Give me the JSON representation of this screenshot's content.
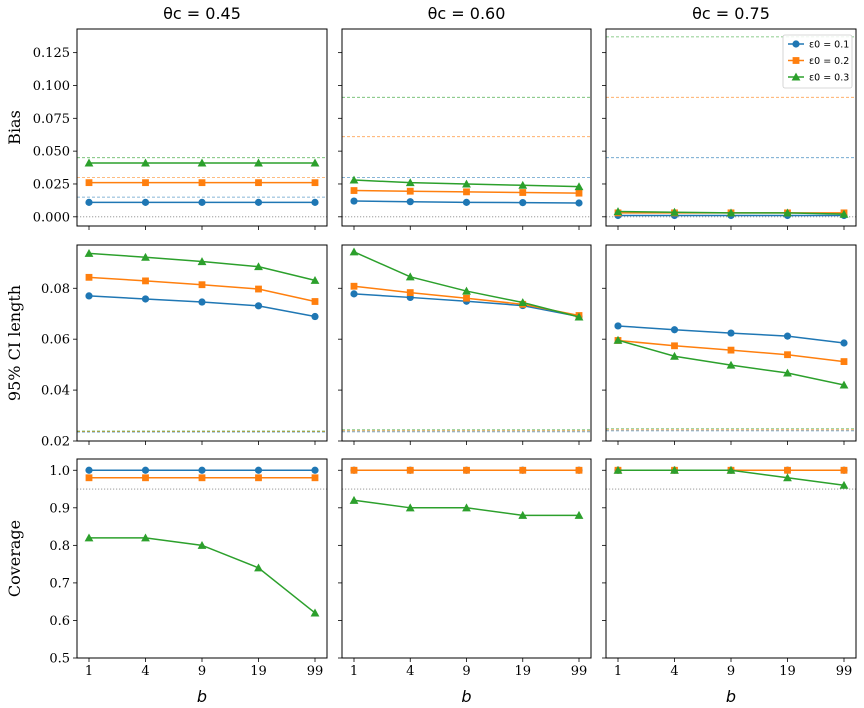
{
  "figure": {
    "col_titles": [
      "θc = 0.45",
      "θc = 0.60",
      "θc = 0.75"
    ],
    "xlabel": "b",
    "colors": {
      "eps0_0.1": "#1f77b4",
      "eps0_0.2": "#ff7f0e",
      "eps0_0.3": "#2ca02c",
      "reference": "#7f7f7f"
    }
  },
  "legend": {
    "placement": "top-right of top-right panel",
    "entries": [
      {
        "label": "ε0 = 0.1",
        "marker": "circle",
        "color": "#1f77b4"
      },
      {
        "label": "ε0 = 0.2",
        "marker": "square",
        "color": "#ff7f0e"
      },
      {
        "label": "ε0 = 0.3",
        "marker": "triangle",
        "color": "#2ca02c"
      }
    ]
  },
  "chart_data": [
    {
      "type": "line",
      "row": "bias",
      "column": "θc = 0.45",
      "categories": [
        "1",
        "4",
        "9",
        "19",
        "99"
      ],
      "ylabel": "Bias",
      "ylim": [
        -0.007,
        0.143
      ],
      "yticks": [
        "0.000",
        "0.025",
        "0.050",
        "0.075",
        "0.100",
        "0.125"
      ],
      "series": [
        {
          "name": "ε0 = 0.1",
          "values": [
            0.011,
            0.011,
            0.011,
            0.011,
            0.011
          ]
        },
        {
          "name": "ε0 = 0.2",
          "values": [
            0.026,
            0.026,
            0.026,
            0.026,
            0.026
          ]
        },
        {
          "name": "ε0 = 0.3",
          "values": [
            0.041,
            0.041,
            0.041,
            0.041,
            0.041
          ]
        }
      ],
      "reference_lines": [
        {
          "color": "#1f77b4",
          "y": 0.015
        },
        {
          "color": "#ff7f0e",
          "y": 0.03
        },
        {
          "color": "#2ca02c",
          "y": 0.045
        },
        {
          "color": "#7f7f7f",
          "y": 0.0,
          "style": "dotted"
        }
      ]
    },
    {
      "type": "line",
      "row": "bias",
      "column": "θc = 0.60",
      "categories": [
        "1",
        "4",
        "9",
        "19",
        "99"
      ],
      "ylim": [
        -0.007,
        0.143
      ],
      "series": [
        {
          "name": "ε0 = 0.1",
          "values": [
            0.012,
            0.0115,
            0.011,
            0.0108,
            0.0105
          ]
        },
        {
          "name": "ε0 = 0.2",
          "values": [
            0.02,
            0.0195,
            0.019,
            0.0185,
            0.018
          ]
        },
        {
          "name": "ε0 = 0.3",
          "values": [
            0.028,
            0.026,
            0.025,
            0.024,
            0.023
          ]
        }
      ],
      "reference_lines": [
        {
          "color": "#1f77b4",
          "y": 0.03
        },
        {
          "color": "#ff7f0e",
          "y": 0.061
        },
        {
          "color": "#2ca02c",
          "y": 0.091
        },
        {
          "color": "#7f7f7f",
          "y": 0.0,
          "style": "dotted"
        }
      ]
    },
    {
      "type": "line",
      "row": "bias",
      "column": "θc = 0.75",
      "categories": [
        "1",
        "4",
        "9",
        "19",
        "99"
      ],
      "ylim": [
        -0.007,
        0.143
      ],
      "series": [
        {
          "name": "ε0 = 0.1",
          "values": [
            0.001,
            0.001,
            0.001,
            0.001,
            0.001
          ]
        },
        {
          "name": "ε0 = 0.2",
          "values": [
            0.003,
            0.003,
            0.003,
            0.003,
            0.003
          ]
        },
        {
          "name": "ε0 = 0.3",
          "values": [
            0.004,
            0.0035,
            0.003,
            0.003,
            0.002
          ]
        }
      ],
      "reference_lines": [
        {
          "color": "#1f77b4",
          "y": 0.045
        },
        {
          "color": "#ff7f0e",
          "y": 0.091
        },
        {
          "color": "#2ca02c",
          "y": 0.137
        },
        {
          "color": "#7f7f7f",
          "y": 0.0,
          "style": "dotted"
        }
      ]
    },
    {
      "type": "line",
      "row": "ci_length",
      "column": "θc = 0.45",
      "categories": [
        "1",
        "4",
        "9",
        "19",
        "99"
      ],
      "ylabel": "95% CI length",
      "ylim": [
        0.02,
        0.097
      ],
      "yticks": [
        "0.02",
        "0.04",
        "0.06",
        "0.08"
      ],
      "series": [
        {
          "name": "ε0 = 0.1",
          "values": [
            0.077,
            0.0758,
            0.0746,
            0.0731,
            0.0689
          ]
        },
        {
          "name": "ε0 = 0.2",
          "values": [
            0.0843,
            0.0829,
            0.0814,
            0.0797,
            0.0748
          ]
        },
        {
          "name": "ε0 = 0.3",
          "values": [
            0.0937,
            0.0922,
            0.0905,
            0.0885,
            0.0831
          ]
        }
      ],
      "reference_lines": [
        {
          "color": "#1f77b4",
          "y": 0.0235
        },
        {
          "color": "#ff7f0e",
          "y": 0.0237
        },
        {
          "color": "#2ca02c",
          "y": 0.0239
        }
      ]
    },
    {
      "type": "line",
      "row": "ci_length",
      "column": "θc = 0.60",
      "categories": [
        "1",
        "4",
        "9",
        "19",
        "99"
      ],
      "ylim": [
        0.02,
        0.097
      ],
      "series": [
        {
          "name": "ε0 = 0.1",
          "values": [
            0.0778,
            0.0764,
            0.0749,
            0.0732,
            0.0689
          ]
        },
        {
          "name": "ε0 = 0.2",
          "values": [
            0.0808,
            0.0783,
            0.0761,
            0.0737,
            0.0693
          ]
        },
        {
          "name": "ε0 = 0.3",
          "values": [
            0.0943,
            0.0845,
            0.0789,
            0.0744,
            0.0687
          ]
        }
      ],
      "reference_lines": [
        {
          "color": "#1f77b4",
          "y": 0.0236
        },
        {
          "color": "#ff7f0e",
          "y": 0.024
        },
        {
          "color": "#2ca02c",
          "y": 0.0244
        }
      ]
    },
    {
      "type": "line",
      "row": "ci_length",
      "column": "θc = 0.75",
      "categories": [
        "1",
        "4",
        "9",
        "19",
        "99"
      ],
      "ylim": [
        0.02,
        0.097
      ],
      "series": [
        {
          "name": "ε0 = 0.1",
          "values": [
            0.0652,
            0.0637,
            0.0624,
            0.0612,
            0.0585
          ]
        },
        {
          "name": "ε0 = 0.2",
          "values": [
            0.0595,
            0.0574,
            0.0557,
            0.0539,
            0.0512
          ]
        },
        {
          "name": "ε0 = 0.3",
          "values": [
            0.0596,
            0.0533,
            0.0498,
            0.0467,
            0.042
          ]
        }
      ],
      "reference_lines": [
        {
          "color": "#1f77b4",
          "y": 0.024
        },
        {
          "color": "#ff7f0e",
          "y": 0.0244
        },
        {
          "color": "#2ca02c",
          "y": 0.0248
        }
      ]
    },
    {
      "type": "line",
      "row": "coverage",
      "column": "θc = 0.45",
      "categories": [
        "1",
        "4",
        "9",
        "19",
        "99"
      ],
      "ylabel": "Coverage",
      "xlabel": "b",
      "ylim": [
        0.5,
        1.03
      ],
      "yticks": [
        "0.5",
        "0.6",
        "0.7",
        "0.8",
        "0.9",
        "1.0"
      ],
      "series": [
        {
          "name": "ε0 = 0.1",
          "values": [
            1.0,
            1.0,
            1.0,
            1.0,
            1.0
          ]
        },
        {
          "name": "ε0 = 0.2",
          "values": [
            0.98,
            0.98,
            0.98,
            0.98,
            0.98
          ]
        },
        {
          "name": "ε0 = 0.3",
          "values": [
            0.82,
            0.82,
            0.8,
            0.74,
            0.62
          ]
        }
      ],
      "reference_lines": [
        {
          "color": "#7f7f7f",
          "y": 0.95,
          "style": "dotted"
        }
      ]
    },
    {
      "type": "line",
      "row": "coverage",
      "column": "θc = 0.60",
      "categories": [
        "1",
        "4",
        "9",
        "19",
        "99"
      ],
      "xlabel": "b",
      "ylim": [
        0.5,
        1.03
      ],
      "series": [
        {
          "name": "ε0 = 0.1",
          "values": [
            1.0,
            1.0,
            1.0,
            1.0,
            1.0
          ]
        },
        {
          "name": "ε0 = 0.2",
          "values": [
            1.0,
            1.0,
            1.0,
            1.0,
            1.0
          ]
        },
        {
          "name": "ε0 = 0.3",
          "values": [
            0.92,
            0.9,
            0.9,
            0.88,
            0.88
          ]
        }
      ],
      "reference_lines": [
        {
          "color": "#7f7f7f",
          "y": 0.95,
          "style": "dotted"
        }
      ]
    },
    {
      "type": "line",
      "row": "coverage",
      "column": "θc = 0.75",
      "categories": [
        "1",
        "4",
        "9",
        "19",
        "99"
      ],
      "xlabel": "b",
      "ylim": [
        0.5,
        1.03
      ],
      "series": [
        {
          "name": "ε0 = 0.1",
          "values": [
            1.0,
            1.0,
            1.0,
            1.0,
            1.0
          ]
        },
        {
          "name": "ε0 = 0.2",
          "values": [
            1.0,
            1.0,
            1.0,
            1.0,
            1.0
          ]
        },
        {
          "name": "ε0 = 0.3",
          "values": [
            1.0,
            1.0,
            1.0,
            0.98,
            0.96
          ]
        }
      ],
      "reference_lines": [
        {
          "color": "#7f7f7f",
          "y": 0.95,
          "style": "dotted"
        }
      ]
    }
  ]
}
